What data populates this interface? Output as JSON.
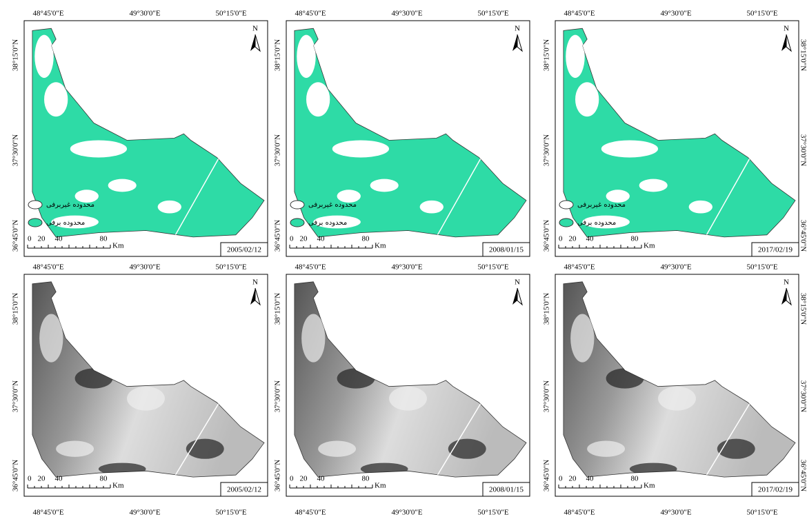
{
  "panels": [
    {
      "lon_labels": [
        "48°45'0\"E",
        "49°30'0\"E",
        "50°15'0\"E"
      ],
      "lat_labels": [
        "38°15'0\"N",
        "37°30'0\"N",
        "36°45'0\"N"
      ],
      "north": "N",
      "legend": [
        "محدوده غیربرفی",
        "محدوده برفی"
      ],
      "scale": [
        "0",
        "20",
        "40",
        "80",
        "Km"
      ],
      "date": "2005/02/12"
    },
    {
      "lon_labels": [
        "48°45'0\"E",
        "49°30'0\"E",
        "50°15'0\"E"
      ],
      "lat_labels": [
        "38°15'0\"N",
        "37°30'0\"N",
        "36°45'0\"N"
      ],
      "north": "N",
      "legend": [
        "محدوده غیربرفی",
        "محدوده برفی"
      ],
      "scale": [
        "0",
        "20",
        "40",
        "80",
        "Km"
      ],
      "date": "2008/01/15"
    },
    {
      "lon_labels": [
        "48°45'0\"E",
        "49°30'0\"E",
        "50°15'0\"E"
      ],
      "lat_labels": [
        "38°15'0\"N",
        "37°30'0\"N",
        "36°45'0\"N"
      ],
      "right_lat_labels": [
        "38°15'0\"N",
        "37°30'0\"N",
        "36°45'0\"N"
      ],
      "north": "N",
      "legend": [
        "محدوده غیربرفی",
        "محدوده برفی"
      ],
      "scale": [
        "0",
        "20",
        "40",
        "80",
        "Km"
      ],
      "date": "2017/02/19"
    },
    {
      "lon_labels": [
        "48°45'0\"E",
        "49°30'0\"E",
        "50°15'0\"E"
      ],
      "bottom_lon_labels": [
        "48°45'0\"E",
        "49°30'0\"E",
        "50°15'0\"E"
      ],
      "lat_labels": [
        "38°15'0\"N",
        "37°30'0\"N",
        "36°45'0\"N"
      ],
      "north": "N",
      "scale": [
        "0",
        "20",
        "40",
        "80",
        "Km"
      ],
      "date": "2005/02/12"
    },
    {
      "lon_labels": [
        "48°45'0\"E",
        "49°30'0\"E",
        "50°15'0\"E"
      ],
      "bottom_lon_labels": [
        "48°45'0\"E",
        "49°30'0\"E",
        "50°15'0\"E"
      ],
      "lat_labels": [
        "38°15'0\"N",
        "37°30'0\"N",
        "36°45'0\"N"
      ],
      "north": "N",
      "scale": [
        "0",
        "20",
        "40",
        "80",
        "Km"
      ],
      "date": "2008/01/15"
    },
    {
      "lon_labels": [
        "48°45'0\"E",
        "49°30'0\"E",
        "50°15'0\"E"
      ],
      "bottom_lon_labels": [
        "48°45'0\"E",
        "49°30'0\"E",
        "50°15'0\"E"
      ],
      "lat_labels": [
        "38°15'0\"N",
        "37°30'0\"N",
        "36°45'0\"N"
      ],
      "right_lat_labels": [
        "38°15'0\"N",
        "37°30'0\"N",
        "36°45'0\"N"
      ],
      "north": "N",
      "scale": [
        "0",
        "20",
        "40",
        "80",
        "Km"
      ],
      "date": "2017/02/19"
    }
  ]
}
